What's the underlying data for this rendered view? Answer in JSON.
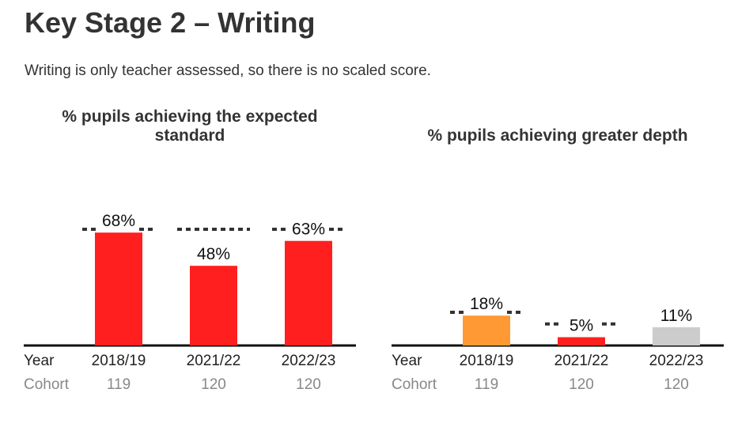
{
  "page": {
    "title": "Key Stage 2 – Writing",
    "intro": "Writing is only teacher assessed, so there is no scaled score."
  },
  "colors": {
    "below": "#ff1f1f",
    "above": "#ff9933",
    "neutral": "#cccccc",
    "benchmark_dash": "#333333",
    "axis": "#111111",
    "cohort_text": "#888888"
  },
  "chart_data": [
    {
      "type": "bar",
      "title": "% pupils achieving the expected standard",
      "title_lines": [
        "% pupils achieving the expected",
        "standard"
      ],
      "row_label_year": "Year",
      "row_label_cohort": "Cohort",
      "categories": [
        "2018/19",
        "2021/22",
        "2022/23"
      ],
      "values": [
        68,
        48,
        63
      ],
      "value_labels": [
        "68%",
        "48%",
        "63%"
      ],
      "benchmarks": [
        70,
        70,
        70
      ],
      "bar_colors": [
        "#ff1f1f",
        "#ff1f1f",
        "#ff1f1f"
      ],
      "cohort": [
        "119",
        "120",
        "120"
      ],
      "ylim": [
        0,
        100
      ]
    },
    {
      "type": "bar",
      "title": "% pupils achieving greater depth",
      "title_lines": [
        "% pupils achieving greater depth"
      ],
      "row_label_year": "Year",
      "row_label_cohort": "Cohort",
      "categories": [
        "2018/19",
        "2021/22",
        "2022/23"
      ],
      "values": [
        18,
        5,
        11
      ],
      "value_labels": [
        "18%",
        "5%",
        "11%"
      ],
      "benchmarks": [
        20,
        13,
        null
      ],
      "bar_colors": [
        "#ff9933",
        "#ff1f1f",
        "#cccccc"
      ],
      "cohort": [
        "119",
        "120",
        "120"
      ],
      "ylim": [
        0,
        100
      ]
    }
  ]
}
